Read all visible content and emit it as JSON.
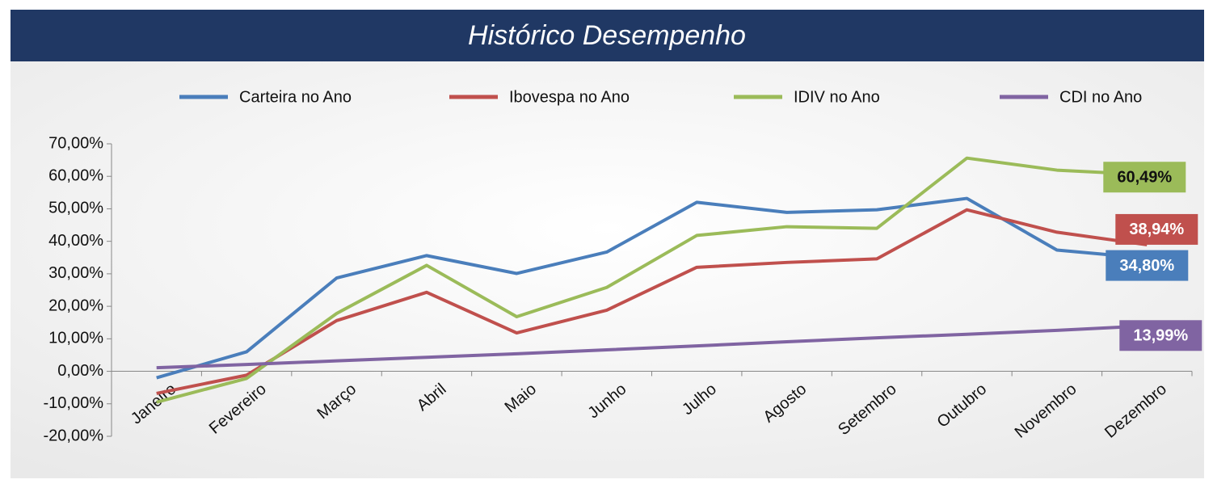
{
  "chart_data": {
    "type": "line",
    "title": "Histórico Desempenho",
    "categories": [
      "Janeiro",
      "Fevereiro",
      "Março",
      "Abril",
      "Maio",
      "Junho",
      "Julho",
      "Agosto",
      "Setembro",
      "Outubro",
      "Novembro",
      "Dezembro"
    ],
    "series": [
      {
        "name": "Carteira no Ano",
        "color": "#4a7ebb",
        "values": [
          -2,
          6,
          28.7,
          35.6,
          30.1,
          36.7,
          52,
          48.9,
          49.7,
          53.2,
          37.3,
          34.8
        ],
        "value_labels": [
          null,
          null,
          null,
          null,
          null,
          null,
          null,
          null,
          null,
          null,
          null,
          "34,80%"
        ]
      },
      {
        "name": "Ibovespa no Ano",
        "color": "#c0504d",
        "values": [
          -6.8,
          -1.2,
          15.6,
          24.3,
          11.8,
          18.8,
          32,
          33.5,
          34.6,
          49.7,
          42.8,
          38.94
        ],
        "value_labels": [
          null,
          null,
          null,
          null,
          null,
          null,
          null,
          null,
          null,
          null,
          null,
          "38,94%"
        ]
      },
      {
        "name": "IDIV no Ano",
        "color": "#9bbb59",
        "values": [
          -9.5,
          -2.2,
          17.8,
          32.6,
          16.8,
          25.8,
          41.8,
          44.5,
          44,
          65.6,
          61.9,
          60.49
        ],
        "value_labels": [
          null,
          null,
          null,
          null,
          null,
          null,
          null,
          null,
          null,
          null,
          null,
          "60,49%"
        ]
      },
      {
        "name": "CDI no Ano",
        "color": "#8064a2",
        "values": [
          1.1,
          2.1,
          3.2,
          4.3,
          5.4,
          6.6,
          7.8,
          9.1,
          10.3,
          11.4,
          12.6,
          13.99
        ],
        "value_labels": [
          null,
          null,
          null,
          null,
          null,
          null,
          null,
          null,
          null,
          null,
          null,
          "13,99%"
        ]
      }
    ],
    "ylim": [
      -20,
      70
    ],
    "yticks": [
      {
        "value": -20,
        "label": "-20,00%"
      },
      {
        "value": -10,
        "label": "-10,00%"
      },
      {
        "value": 0,
        "label": "0,00%"
      },
      {
        "value": 10,
        "label": "10,00%"
      },
      {
        "value": 20,
        "label": "20,00%"
      },
      {
        "value": 30,
        "label": "30,00%"
      },
      {
        "value": 40,
        "label": "40,00%"
      },
      {
        "value": 50,
        "label": "50,00%"
      },
      {
        "value": 60,
        "label": "60,00%"
      },
      {
        "value": 70,
        "label": "70,00%"
      }
    ],
    "legend": "top",
    "grid": false
  }
}
